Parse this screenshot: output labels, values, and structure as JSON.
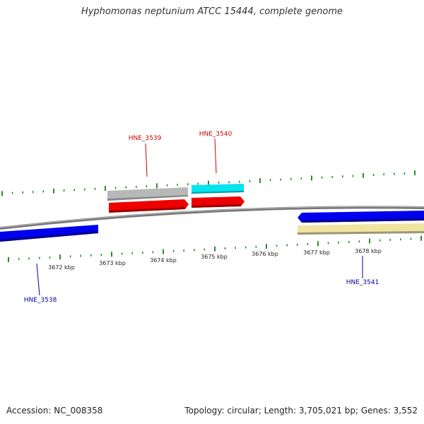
{
  "title": "Hyphomonas neptunium ATCC 15444, complete genome",
  "footer": {
    "accession": "Accession: NC_008358",
    "summary": "Topology: circular; Length: 3,705,021 bp; Genes: 3,552"
  },
  "scale": {
    "labels": [
      "3672 kbp",
      "3673 kbp",
      "3674 kbp",
      "3675 kbp",
      "3676 kbp",
      "3677 kbp",
      "3678 kbp"
    ]
  },
  "genes": [
    {
      "id": "HNE_3538",
      "strand": "minus",
      "color": "#0000cc",
      "label_color": "#000099"
    },
    {
      "id": "HNE_3539",
      "strand": "plus",
      "color": "#cc0000",
      "label_color": "#cc0000"
    },
    {
      "id": "HNE_3540",
      "strand": "plus",
      "color": "#cc0000",
      "label_color": "#cc0000"
    },
    {
      "id": "HNE_3541",
      "strand": "minus",
      "color": "#0000cc",
      "label_color": "#000099"
    }
  ],
  "colors": {
    "backbone": "#888888",
    "tick": "#2e8b2e",
    "gene_plus": "#ee0000",
    "gene_minus": "#0000ee",
    "cog_gray": "#b8b8b8",
    "cog_cyan": "#00e5ee",
    "cog_yellow": "#f0e4a0"
  }
}
